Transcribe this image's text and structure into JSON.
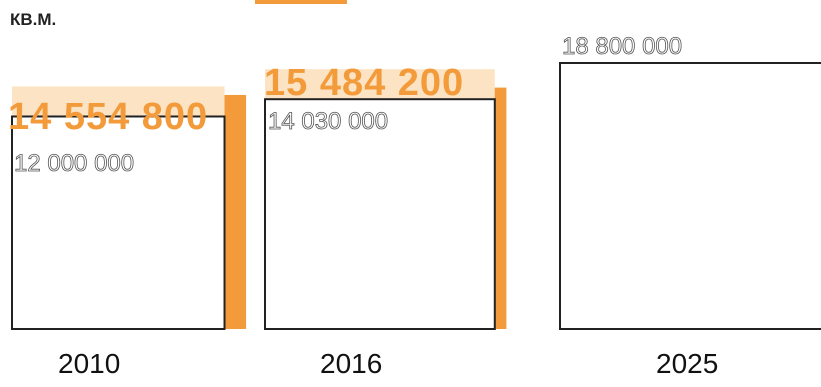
{
  "unit": "КВ.М.",
  "colors": {
    "accent": "#f39b3a",
    "accent_light": "#fbe3c4",
    "box_stroke": "#222222"
  },
  "chart_data": {
    "type": "bar",
    "categories": [
      "2010",
      "2016",
      "2025"
    ],
    "series": [
      {
        "values": [
          14554800,
          15484200,
          null
        ]
      },
      {
        "values": [
          12000000,
          14030000,
          18800000
        ]
      }
    ],
    "labels": {
      "total": [
        "14 554 800",
        "15 484 200",
        ""
      ],
      "base": [
        "12 000 000",
        "14 030 000",
        "18 800 000"
      ]
    }
  }
}
